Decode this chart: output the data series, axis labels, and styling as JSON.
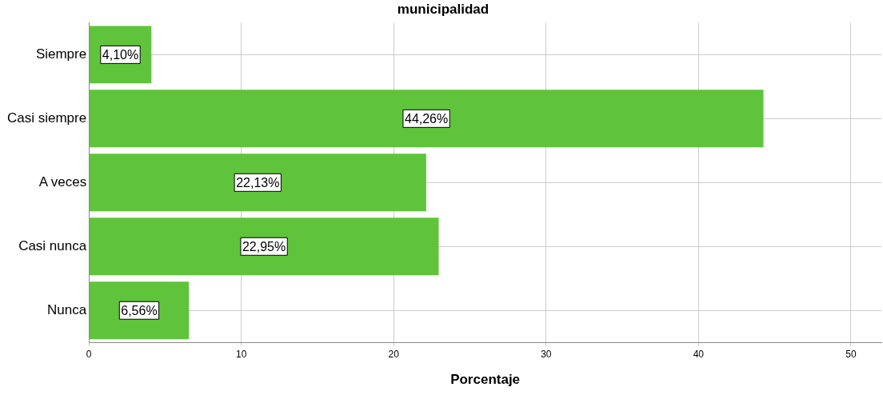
{
  "chart_data": {
    "type": "bar",
    "orientation": "horizontal",
    "title": "municipalidad",
    "xlabel": "Porcentaje",
    "categories": [
      "Siempre",
      "Casi siempre",
      "A veces",
      "Casi nunca",
      "Nunca"
    ],
    "values": [
      4.1,
      44.26,
      22.13,
      22.95,
      6.56
    ],
    "value_labels": [
      "4,10%",
      "44,26%",
      "22,13%",
      "22,95%",
      "6,56%"
    ],
    "color": "#5fc43b",
    "xlim": [
      0,
      52
    ],
    "xticks": [
      0,
      10,
      20,
      30,
      40,
      50
    ],
    "grid": true
  }
}
